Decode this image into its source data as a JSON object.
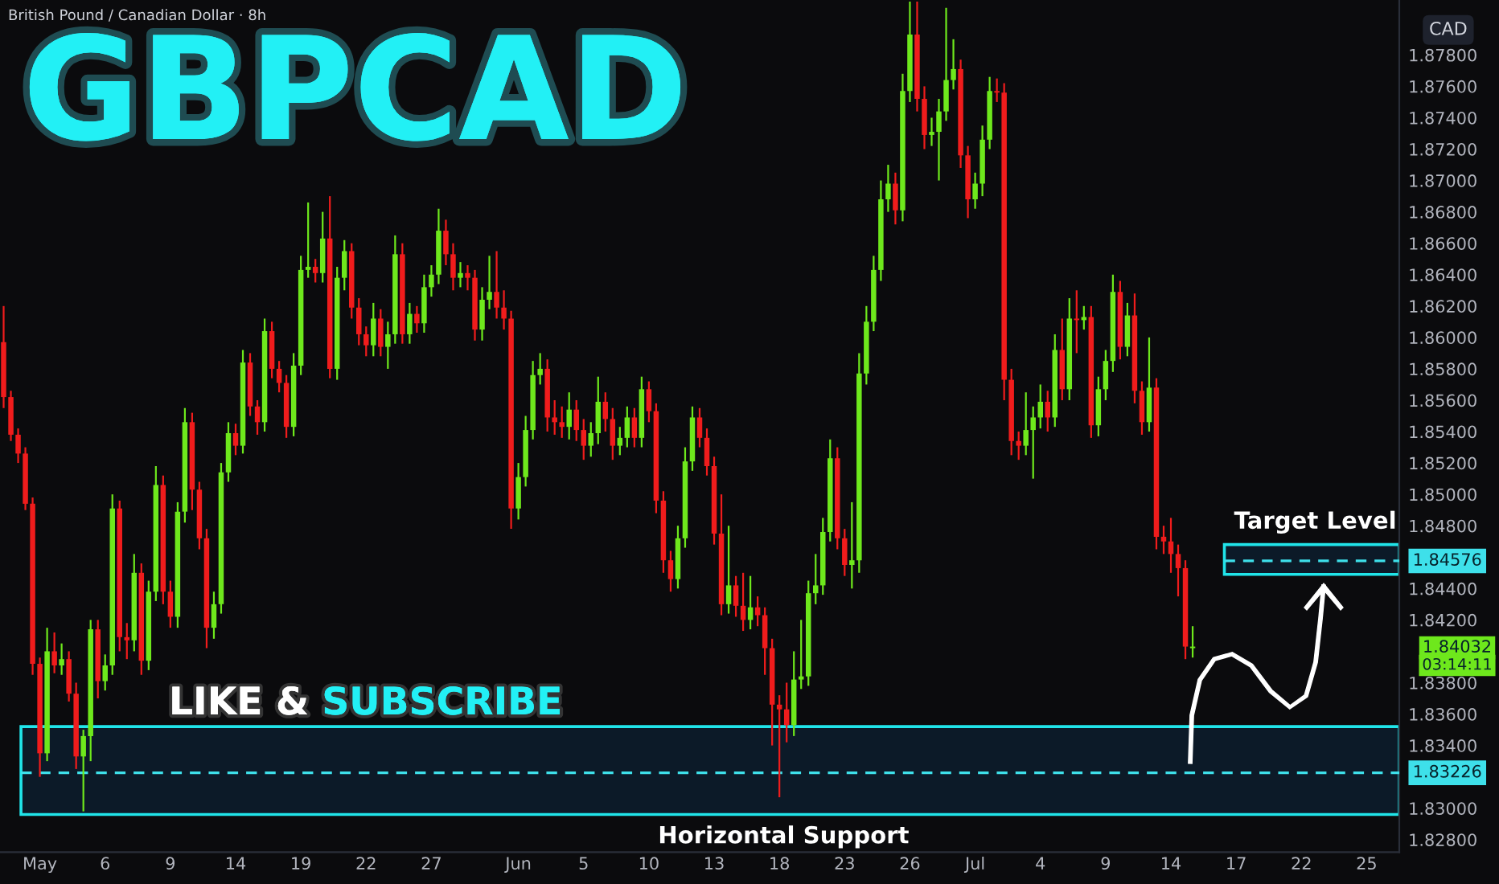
{
  "chart_data": {
    "type": "candlestick",
    "title": "GBPCAD",
    "subtitle": "British Pound / Canadian Dollar · 8h",
    "ylabel": "CAD",
    "categories": [
      null,
      null,
      null,
      null,
      null,
      "May",
      null,
      null,
      null,
      null,
      null,
      null,
      null,
      null,
      "6",
      null,
      null,
      null,
      null,
      null,
      null,
      null,
      null,
      "9",
      null,
      null,
      null,
      null,
      null,
      null,
      null,
      null,
      "14",
      null,
      null,
      null,
      null,
      null,
      null,
      null,
      null,
      "19",
      null,
      null,
      null,
      null,
      null,
      null,
      null,
      null,
      "22",
      null,
      null,
      null,
      null,
      null,
      null,
      null,
      null,
      "27",
      null,
      null,
      null,
      null,
      null,
      null,
      null,
      null,
      null,
      null,
      null,
      "Jun",
      null,
      null,
      null,
      null,
      null,
      null,
      null,
      null,
      "5",
      null,
      null,
      null,
      null,
      null,
      null,
      null,
      null,
      "10",
      null,
      null,
      null,
      null,
      null,
      null,
      null,
      null,
      "13",
      null,
      null,
      null,
      null,
      null,
      null,
      null,
      null,
      "18",
      null,
      null,
      null,
      null,
      null,
      null,
      null,
      null,
      "23",
      null,
      null,
      null,
      null,
      null,
      null,
      null,
      null,
      "26",
      null,
      null,
      null,
      null,
      null,
      null,
      null,
      null,
      "Jul",
      null,
      null,
      null,
      null,
      null,
      null,
      null,
      null,
      "4",
      null,
      null,
      null,
      null,
      null,
      null,
      null,
      null,
      "9",
      null,
      null,
      null,
      null,
      null,
      null,
      null,
      null,
      "14",
      null,
      null,
      null,
      null,
      null,
      null,
      null,
      null,
      "17",
      null,
      null,
      null,
      null,
      null,
      null,
      null,
      null,
      "22",
      null,
      null,
      null,
      null,
      null,
      null,
      null,
      null,
      "25",
      null,
      null,
      null,
      null
    ],
    "ohlc": [
      [
        1.8597,
        1.862,
        1.8555,
        1.8562
      ],
      [
        1.8562,
        1.8566,
        1.8534,
        1.8538
      ],
      [
        1.8538,
        1.8542,
        1.852,
        1.8526
      ],
      [
        1.8526,
        1.853,
        1.849,
        1.8494
      ],
      [
        1.8494,
        1.8498,
        1.8385,
        1.8392
      ],
      [
        1.8392,
        1.8396,
        1.832,
        1.8335
      ],
      [
        1.8335,
        1.8415,
        1.833,
        1.84
      ],
      [
        1.84,
        1.8412,
        1.8386,
        1.8391
      ],
      [
        1.8391,
        1.8405,
        1.8385,
        1.8395
      ],
      [
        1.8395,
        1.84,
        1.8368,
        1.8373
      ],
      [
        1.8373,
        1.838,
        1.8325,
        1.8333
      ],
      [
        1.8333,
        1.835,
        1.8298,
        1.8346
      ],
      [
        1.8346,
        1.842,
        1.833,
        1.8414
      ],
      [
        1.8414,
        1.842,
        1.837,
        1.8381
      ],
      [
        1.8381,
        1.8398,
        1.8375,
        1.8391
      ],
      [
        1.8391,
        1.85,
        1.8385,
        1.8491
      ],
      [
        1.8491,
        1.8496,
        1.84,
        1.8409
      ],
      [
        1.8409,
        1.8418,
        1.8395,
        1.8407
      ],
      [
        1.8407,
        1.8462,
        1.84,
        1.845
      ],
      [
        1.845,
        1.8456,
        1.8385,
        1.8394
      ],
      [
        1.8394,
        1.8445,
        1.8388,
        1.8438
      ],
      [
        1.8438,
        1.8518,
        1.8432,
        1.8506
      ],
      [
        1.8506,
        1.8512,
        1.843,
        1.8438
      ],
      [
        1.8438,
        1.8445,
        1.8415,
        1.8422
      ],
      [
        1.8422,
        1.8495,
        1.8415,
        1.8489
      ],
      [
        1.8489,
        1.8555,
        1.8482,
        1.8546
      ],
      [
        1.8546,
        1.8552,
        1.849,
        1.8503
      ],
      [
        1.8503,
        1.8508,
        1.8465,
        1.8472
      ],
      [
        1.8472,
        1.8478,
        1.8402,
        1.8415
      ],
      [
        1.8415,
        1.8438,
        1.8408,
        1.843
      ],
      [
        1.843,
        1.852,
        1.8424,
        1.8514
      ],
      [
        1.8514,
        1.8546,
        1.8508,
        1.8539
      ],
      [
        1.8539,
        1.8545,
        1.8525,
        1.8531
      ],
      [
        1.8531,
        1.8592,
        1.8526,
        1.8584
      ],
      [
        1.8584,
        1.859,
        1.855,
        1.8556
      ],
      [
        1.8556,
        1.856,
        1.8538,
        1.8546
      ],
      [
        1.8546,
        1.8612,
        1.854,
        1.8604
      ],
      [
        1.8604,
        1.861,
        1.8574,
        1.858
      ],
      [
        1.858,
        1.8585,
        1.8565,
        1.8571
      ],
      [
        1.8571,
        1.8576,
        1.8536,
        1.8543
      ],
      [
        1.8543,
        1.859,
        1.8537,
        1.8582
      ],
      [
        1.8582,
        1.8652,
        1.8576,
        1.8643
      ],
      [
        1.8643,
        1.8686,
        1.8638,
        1.8645
      ],
      [
        1.8645,
        1.865,
        1.8635,
        1.8641
      ],
      [
        1.8641,
        1.868,
        1.8635,
        1.8663
      ],
      [
        1.8663,
        1.869,
        1.8574,
        1.858
      ],
      [
        1.858,
        1.8645,
        1.8573,
        1.8638
      ],
      [
        1.8638,
        1.8662,
        1.863,
        1.8655
      ],
      [
        1.8655,
        1.866,
        1.8612,
        1.8619
      ],
      [
        1.8619,
        1.8625,
        1.8595,
        1.8602
      ],
      [
        1.8602,
        1.8607,
        1.8588,
        1.8595
      ],
      [
        1.8595,
        1.8622,
        1.8588,
        1.8612
      ],
      [
        1.8612,
        1.8618,
        1.8588,
        1.8594
      ],
      [
        1.8594,
        1.861,
        1.858,
        1.8602
      ],
      [
        1.8602,
        1.8665,
        1.8596,
        1.8653
      ],
      [
        1.8653,
        1.866,
        1.8596,
        1.8602
      ],
      [
        1.8602,
        1.8622,
        1.8596,
        1.8615
      ],
      [
        1.8615,
        1.862,
        1.8603,
        1.8609
      ],
      [
        1.8609,
        1.864,
        1.8603,
        1.8632
      ],
      [
        1.8632,
        1.8646,
        1.8626,
        1.864
      ],
      [
        1.864,
        1.8682,
        1.8634,
        1.8668
      ],
      [
        1.8668,
        1.8675,
        1.8646,
        1.8653
      ],
      [
        1.8653,
        1.866,
        1.863,
        1.8638
      ],
      [
        1.8638,
        1.8648,
        1.8632,
        1.8641
      ],
      [
        1.8641,
        1.8646,
        1.863,
        1.8638
      ],
      [
        1.8638,
        1.8643,
        1.8598,
        1.8605
      ],
      [
        1.8605,
        1.8632,
        1.8598,
        1.8624
      ],
      [
        1.8624,
        1.8652,
        1.8618,
        1.8629
      ],
      [
        1.8629,
        1.8655,
        1.8612,
        1.8619
      ],
      [
        1.8619,
        1.863,
        1.8605,
        1.8612
      ],
      [
        1.8612,
        1.8617,
        1.8478,
        1.8491
      ],
      [
        1.8491,
        1.852,
        1.8484,
        1.8511
      ],
      [
        1.8511,
        1.855,
        1.8505,
        1.8541
      ],
      [
        1.8541,
        1.8585,
        1.8535,
        1.8576
      ],
      [
        1.8576,
        1.859,
        1.857,
        1.858
      ],
      [
        1.858,
        1.8586,
        1.854,
        1.8549
      ],
      [
        1.8549,
        1.856,
        1.8538,
        1.8546
      ],
      [
        1.8546,
        1.8556,
        1.8536,
        1.8543
      ],
      [
        1.8543,
        1.8565,
        1.8535,
        1.8554
      ],
      [
        1.8554,
        1.856,
        1.8534,
        1.8541
      ],
      [
        1.8541,
        1.8548,
        1.8522,
        1.8531
      ],
      [
        1.8531,
        1.8546,
        1.8524,
        1.8539
      ],
      [
        1.8539,
        1.8575,
        1.8532,
        1.8559
      ],
      [
        1.8559,
        1.8565,
        1.854,
        1.8548
      ],
      [
        1.8548,
        1.8555,
        1.8522,
        1.8531
      ],
      [
        1.8531,
        1.8543,
        1.8525,
        1.8536
      ],
      [
        1.8536,
        1.8556,
        1.853,
        1.8549
      ],
      [
        1.8549,
        1.8555,
        1.853,
        1.8536
      ],
      [
        1.8536,
        1.8575,
        1.853,
        1.8567
      ],
      [
        1.8567,
        1.8572,
        1.8546,
        1.8553
      ],
      [
        1.8553,
        1.8558,
        1.8488,
        1.8496
      ],
      [
        1.8496,
        1.8502,
        1.845,
        1.8458
      ],
      [
        1.8458,
        1.8464,
        1.8438,
        1.8446
      ],
      [
        1.8446,
        1.848,
        1.844,
        1.8472
      ],
      [
        1.8472,
        1.853,
        1.8466,
        1.8521
      ],
      [
        1.8521,
        1.8556,
        1.8515,
        1.8549
      ],
      [
        1.8549,
        1.8555,
        1.853,
        1.8536
      ],
      [
        1.8536,
        1.8542,
        1.8512,
        1.8518
      ],
      [
        1.8518,
        1.8524,
        1.8468,
        1.8475
      ],
      [
        1.8475,
        1.85,
        1.8423,
        1.843
      ],
      [
        1.843,
        1.848,
        1.8424,
        1.8442
      ],
      [
        1.8442,
        1.8448,
        1.8422,
        1.8429
      ],
      [
        1.8429,
        1.845,
        1.8413,
        1.842
      ],
      [
        1.842,
        1.8448,
        1.8414,
        1.8428
      ],
      [
        1.8428,
        1.8435,
        1.8416,
        1.8423
      ],
      [
        1.8423,
        1.8428,
        1.8385,
        1.8402
      ],
      [
        1.8402,
        1.8408,
        1.834,
        1.8366
      ],
      [
        1.8366,
        1.8372,
        1.8307,
        1.8363
      ],
      [
        1.8363,
        1.838,
        1.8342,
        1.8353
      ],
      [
        1.8353,
        1.84,
        1.8346,
        1.8382
      ],
      [
        1.8382,
        1.842,
        1.8376,
        1.8384
      ],
      [
        1.8384,
        1.8445,
        1.8378,
        1.8437
      ],
      [
        1.8437,
        1.8462,
        1.843,
        1.8442
      ],
      [
        1.8442,
        1.8485,
        1.8436,
        1.8476
      ],
      [
        1.8476,
        1.8535,
        1.847,
        1.8523
      ],
      [
        1.8523,
        1.853,
        1.8465,
        1.8472
      ],
      [
        1.8472,
        1.8478,
        1.8448,
        1.8455
      ],
      [
        1.8455,
        1.8495,
        1.844,
        1.8458
      ],
      [
        1.8458,
        1.859,
        1.845,
        1.8577
      ],
      [
        1.8577,
        1.862,
        1.857,
        1.861
      ],
      [
        1.861,
        1.8652,
        1.8604,
        1.8643
      ],
      [
        1.8643,
        1.87,
        1.8636,
        1.8688
      ],
      [
        1.8688,
        1.871,
        1.868,
        1.8698
      ],
      [
        1.8698,
        1.8705,
        1.8672,
        1.8681
      ],
      [
        1.8681,
        1.8768,
        1.8674,
        1.8757
      ],
      [
        1.8757,
        1.8814,
        1.875,
        1.8793
      ],
      [
        1.8793,
        1.8814,
        1.8744,
        1.8752
      ],
      [
        1.8752,
        1.876,
        1.872,
        1.8729
      ],
      [
        1.8729,
        1.874,
        1.8722,
        1.8731
      ],
      [
        1.8731,
        1.8752,
        1.87,
        1.8744
      ],
      [
        1.8744,
        1.881,
        1.8738,
        1.8764
      ],
      [
        1.8764,
        1.879,
        1.8758,
        1.8771
      ],
      [
        1.8771,
        1.8777,
        1.8708,
        1.8716
      ],
      [
        1.8716,
        1.8722,
        1.8676,
        1.8688
      ],
      [
        1.8688,
        1.8705,
        1.8682,
        1.8698
      ],
      [
        1.8698,
        1.8735,
        1.869,
        1.8726
      ],
      [
        1.8726,
        1.8766,
        1.872,
        1.8757
      ],
      [
        1.8757,
        1.8765,
        1.875,
        1.8756
      ],
      [
        1.8756,
        1.8762,
        1.856,
        1.8573
      ],
      [
        1.8573,
        1.858,
        1.8525,
        1.8534
      ],
      [
        1.8534,
        1.854,
        1.8522,
        1.8531
      ],
      [
        1.8531,
        1.8565,
        1.8525,
        1.8541
      ],
      [
        1.8541,
        1.8556,
        1.851,
        1.8549
      ],
      [
        1.8549,
        1.857,
        1.8542,
        1.8559
      ],
      [
        1.8559,
        1.8566,
        1.854,
        1.8549
      ],
      [
        1.8549,
        1.8602,
        1.8543,
        1.8592
      ],
      [
        1.8592,
        1.8612,
        1.856,
        1.8567
      ],
      [
        1.8567,
        1.8625,
        1.856,
        1.8612
      ],
      [
        1.8612,
        1.863,
        1.859,
        1.8611
      ],
      [
        1.8611,
        1.862,
        1.8605,
        1.8613
      ],
      [
        1.8613,
        1.862,
        1.8536,
        1.8544
      ],
      [
        1.8544,
        1.8575,
        1.8537,
        1.8567
      ],
      [
        1.8567,
        1.8592,
        1.856,
        1.8585
      ],
      [
        1.8585,
        1.864,
        1.8578,
        1.8629
      ],
      [
        1.8629,
        1.8636,
        1.8586,
        1.8594
      ],
      [
        1.8594,
        1.8622,
        1.8588,
        1.8614
      ],
      [
        1.8614,
        1.8628,
        1.8558,
        1.8566
      ],
      [
        1.8566,
        1.8572,
        1.8538,
        1.8546
      ],
      [
        1.8546,
        1.86,
        1.854,
        1.8568
      ],
      [
        1.8568,
        1.8574,
        1.8465,
        1.8473
      ],
      [
        1.8473,
        1.848,
        1.8462,
        1.847
      ],
      [
        1.847,
        1.8485,
        1.845,
        1.8462
      ],
      [
        1.8462,
        1.8468,
        1.8435,
        1.8453
      ],
      [
        1.8453,
        1.8458,
        1.8395,
        1.8403
      ],
      [
        1.8402,
        1.8416,
        1.8396,
        1.8403
      ],
      null,
      null,
      null,
      null,
      null,
      null,
      null,
      null,
      null,
      null,
      null,
      null,
      null,
      null,
      null,
      null,
      null,
      null,
      null,
      null,
      null,
      null,
      null,
      null,
      null,
      null,
      null,
      null
    ],
    "ylim": [
      1.8272,
      1.8815
    ],
    "yticks": [
      {
        "value": 1.828,
        "label": "1.82800"
      },
      {
        "value": 1.83,
        "label": "1.83000"
      },
      {
        "value": 1.834,
        "label": "1.83400"
      },
      {
        "value": 1.836,
        "label": "1.83600"
      },
      {
        "value": 1.838,
        "label": "1.83800"
      },
      {
        "value": 1.842,
        "label": "1.84200"
      },
      {
        "value": 1.844,
        "label": "1.84400"
      },
      {
        "value": 1.848,
        "label": "1.84800"
      },
      {
        "value": 1.85,
        "label": "1.85000"
      },
      {
        "value": 1.852,
        "label": "1.85200"
      },
      {
        "value": 1.854,
        "label": "1.85400"
      },
      {
        "value": 1.856,
        "label": "1.85600"
      },
      {
        "value": 1.858,
        "label": "1.85800"
      },
      {
        "value": 1.86,
        "label": "1.86000"
      },
      {
        "value": 1.862,
        "label": "1.86200"
      },
      {
        "value": 1.864,
        "label": "1.86400"
      },
      {
        "value": 1.866,
        "label": "1.86600"
      },
      {
        "value": 1.868,
        "label": "1.86800"
      },
      {
        "value": 1.87,
        "label": "1.87000"
      },
      {
        "value": 1.872,
        "label": "1.87200"
      },
      {
        "value": 1.874,
        "label": "1.87400"
      },
      {
        "value": 1.876,
        "label": "1.87600"
      },
      {
        "value": 1.878,
        "label": "1.87800"
      }
    ],
    "bands": [
      {
        "axis": "y",
        "from": 1.8296,
        "to": 1.8352,
        "label": "Horizontal Support",
        "color": "#0d1b2a"
      },
      {
        "axis": "y",
        "from": 1.8449,
        "to": 1.8468,
        "label": "Target Level",
        "color": "#0d1b2a"
      }
    ],
    "ref_lines": [
      {
        "axis": "y",
        "value": 1.83226,
        "label": "1.83226",
        "color": "#3ee0ea",
        "line_style": "dashed"
      },
      {
        "axis": "y",
        "value": 1.84576,
        "label": "1.84576",
        "color": "#3ee0ea",
        "line_style": "dashed"
      }
    ],
    "annotations": [
      "LIKE &",
      "SUBSCRIBE",
      "1.84032",
      "03:14:11"
    ],
    "grid": false,
    "legend": false
  }
}
